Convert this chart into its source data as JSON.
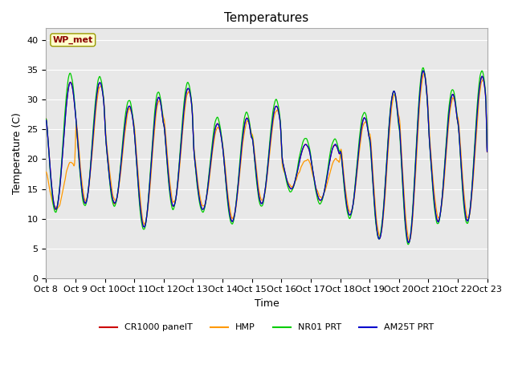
{
  "title": "Temperatures",
  "ylabel": "Temperature (C)",
  "xlabel": "Time",
  "annotation": "WP_met",
  "ylim": [
    0,
    42
  ],
  "yticks": [
    0,
    5,
    10,
    15,
    20,
    25,
    30,
    35,
    40
  ],
  "xtick_labels": [
    "Oct 8",
    "Oct 9",
    "Oct 10",
    "Oct 11",
    "Oct 12",
    "Oct 13",
    "Oct 14",
    "Oct 15",
    "Oct 16",
    "Oct 17",
    "Oct 18",
    "Oct 19",
    "Oct 20",
    "Oct 21",
    "Oct 22",
    "Oct 23"
  ],
  "bg_color": "#e8e8e8",
  "legend_entries": [
    "CR1000 panelT",
    "HMP",
    "NR01 PRT",
    "AM25T PRT"
  ],
  "legend_colors": [
    "#cc0000",
    "#ff9900",
    "#00cc00",
    "#0000cc"
  ],
  "line_colors": {
    "CR1000": "#cc0000",
    "HMP": "#ff9900",
    "NR01": "#00cc00",
    "AM25T": "#0000cc"
  },
  "title_fontsize": 11,
  "axis_fontsize": 9,
  "tick_fontsize": 8,
  "figsize": [
    6.4,
    4.8
  ],
  "dpi": 100
}
